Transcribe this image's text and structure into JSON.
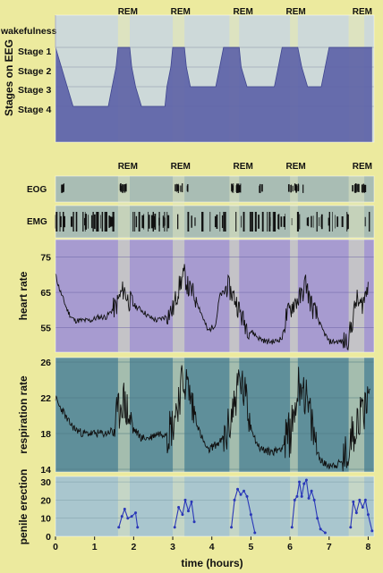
{
  "chart_data": [
    {
      "type": "area",
      "ylabel": "Stages on EEG",
      "stage_labels": [
        "wakefulness",
        "Stage 1",
        "Stage 2",
        "Stage 3",
        "Stage 4"
      ],
      "rem_label": "REM",
      "series": [
        {
          "points": [
            [
              0.0,
              0
            ],
            [
              0.0,
              1
            ],
            [
              0.15,
              2
            ],
            [
              0.3,
              3
            ],
            [
              0.45,
              4
            ],
            [
              1.35,
              4
            ],
            [
              1.45,
              3
            ],
            [
              1.55,
              2
            ],
            [
              1.6,
              1
            ],
            [
              1.9,
              1
            ],
            [
              1.95,
              2
            ],
            [
              2.05,
              3
            ],
            [
              2.2,
              4
            ],
            [
              2.8,
              4
            ],
            [
              2.85,
              3
            ],
            [
              2.95,
              2
            ],
            [
              3.0,
              1
            ],
            [
              3.3,
              1
            ],
            [
              3.35,
              2
            ],
            [
              3.45,
              3
            ],
            [
              4.1,
              3
            ],
            [
              4.2,
              2
            ],
            [
              4.3,
              1
            ],
            [
              4.7,
              1
            ],
            [
              4.75,
              2
            ],
            [
              4.9,
              3
            ],
            [
              5.6,
              3
            ],
            [
              5.7,
              2
            ],
            [
              5.8,
              1
            ],
            [
              6.2,
              1
            ],
            [
              6.3,
              2
            ],
            [
              6.45,
              3
            ],
            [
              6.8,
              3
            ],
            [
              6.9,
              2
            ],
            [
              7.0,
              1
            ],
            [
              8.1,
              1
            ]
          ]
        }
      ],
      "rem_periods": [
        [
          1.6,
          1.9
        ],
        [
          3.0,
          3.3
        ],
        [
          4.45,
          4.7
        ],
        [
          6.0,
          6.2
        ],
        [
          7.5,
          7.9
        ]
      ],
      "xlim": [
        0,
        8.15
      ]
    },
    {
      "type": "line",
      "ylabel": "heart rate",
      "yticks": [
        55,
        65,
        75
      ],
      "ylim": [
        48,
        80
      ],
      "series": [
        {
          "x": [
            0.0,
            0.1,
            0.2,
            0.3,
            0.4,
            0.5,
            0.7,
            0.9,
            1.1,
            1.3,
            1.45,
            1.55,
            1.65,
            1.75,
            1.85,
            1.95,
            2.05,
            2.2,
            2.4,
            2.6,
            2.8,
            3.0,
            3.1,
            3.2,
            3.3,
            3.4,
            3.5,
            3.6,
            3.7,
            3.8,
            3.9,
            4.0,
            4.1,
            4.2,
            4.3,
            4.4,
            4.5,
            4.6,
            4.7,
            4.8,
            5.0,
            5.2,
            5.4,
            5.6,
            5.8,
            5.9,
            6.0,
            6.1,
            6.2,
            6.3,
            6.4,
            6.5,
            6.6,
            6.7,
            6.8,
            7.0,
            7.2,
            7.4,
            7.5,
            7.6,
            7.7,
            7.8,
            7.9,
            8.0
          ],
          "values": [
            70,
            66,
            63,
            60,
            58,
            57,
            57,
            57,
            58,
            58,
            60,
            61,
            64,
            66,
            63,
            62,
            61,
            60,
            58,
            57,
            58,
            60,
            64,
            68,
            70,
            66,
            65,
            63,
            60,
            57,
            54,
            55,
            56,
            64,
            65,
            67,
            65,
            63,
            60,
            57,
            54,
            52,
            51,
            51,
            52,
            58,
            60,
            62,
            63,
            64,
            68,
            63,
            60,
            58,
            55,
            51,
            51,
            51,
            52,
            57,
            63,
            61,
            63,
            68
          ]
        }
      ],
      "xlim": [
        0,
        8.15
      ]
    },
    {
      "type": "line",
      "ylabel": "respiration rate",
      "yticks": [
        14,
        18,
        22,
        26
      ],
      "ylim": [
        13.7,
        26.5
      ],
      "series": [
        {
          "x": [
            0.0,
            0.1,
            0.2,
            0.3,
            0.4,
            0.5,
            0.7,
            0.9,
            1.1,
            1.3,
            1.5,
            1.6,
            1.7,
            1.8,
            1.9,
            2.0,
            2.1,
            2.2,
            2.4,
            2.6,
            2.8,
            3.0,
            3.1,
            3.2,
            3.3,
            3.4,
            3.5,
            3.6,
            3.7,
            3.8,
            3.9,
            4.0,
            4.2,
            4.4,
            4.5,
            4.6,
            4.7,
            4.8,
            4.9,
            5.0,
            5.1,
            5.2,
            5.4,
            5.6,
            5.8,
            6.0,
            6.1,
            6.2,
            6.3,
            6.4,
            6.5,
            6.6,
            6.7,
            6.8,
            6.9,
            7.0,
            7.2,
            7.4,
            7.5,
            7.6,
            7.7,
            7.8,
            7.9,
            8.05
          ],
          "values": [
            22,
            21,
            20.5,
            19.5,
            19,
            18.5,
            18,
            18,
            18,
            18,
            18.5,
            20,
            22,
            21,
            19.5,
            18.5,
            18,
            17.5,
            17.5,
            18,
            18,
            19,
            21,
            23,
            24,
            23,
            21,
            19.5,
            18,
            17,
            16,
            16.5,
            17,
            18,
            20,
            22,
            24,
            23,
            21,
            19,
            17.5,
            16.5,
            16,
            16,
            16.5,
            18,
            20,
            23,
            24,
            22,
            20,
            18,
            16,
            15,
            14.5,
            14.5,
            14.5,
            15,
            16.5,
            18,
            19.5,
            20,
            21,
            23
          ]
        }
      ],
      "xlim": [
        0,
        8.15
      ]
    },
    {
      "type": "line",
      "ylabel": "penile erection",
      "yticks": [
        0,
        10,
        20,
        30
      ],
      "ylim": [
        0,
        33
      ],
      "xlabel": "time (hours)",
      "xticks": [
        0,
        1,
        2,
        3,
        4,
        5,
        6,
        7,
        8
      ],
      "xlim": [
        0,
        8.15
      ],
      "series": [
        {
          "x": [
            1.62,
            1.7,
            1.77,
            1.85,
            1.95,
            2.05,
            2.1,
            3.05,
            3.15,
            3.25,
            3.32,
            3.4,
            3.48,
            3.55,
            4.5,
            4.58,
            4.66,
            4.74,
            4.82,
            4.9,
            5.0,
            5.1,
            6.05,
            6.12,
            6.18,
            6.24,
            6.3,
            6.36,
            6.42,
            6.48,
            6.55,
            6.62,
            6.7,
            6.78,
            6.9,
            7.55,
            7.62,
            7.7,
            7.78,
            7.86,
            7.93,
            8.0,
            8.1
          ],
          "values": [
            5,
            11,
            15,
            10,
            11,
            13,
            5,
            5,
            16,
            12,
            20,
            14,
            19,
            8,
            5,
            20,
            26,
            23,
            25,
            22,
            12,
            2,
            5,
            20,
            22,
            30,
            22,
            29,
            31,
            21,
            25,
            20,
            10,
            4,
            2,
            5,
            19,
            13,
            20,
            16,
            20,
            12,
            3
          ]
        }
      ]
    }
  ],
  "panels": {
    "eog_label": "EOG",
    "emg_label": "EMG"
  },
  "colors": {
    "background": "#ecea9e",
    "rem_band": "#dde3c0",
    "stage_top": "#cdd9d9",
    "stage_fill": "#5d63a8",
    "eog_emg_bg": "#a9bdb4",
    "heart_bg": "#a79bd0",
    "resp_bg": "#5f8f9a",
    "erection_bg": "#a9c6ce",
    "erection_line": "#2a37b8",
    "trace": "#111111"
  }
}
